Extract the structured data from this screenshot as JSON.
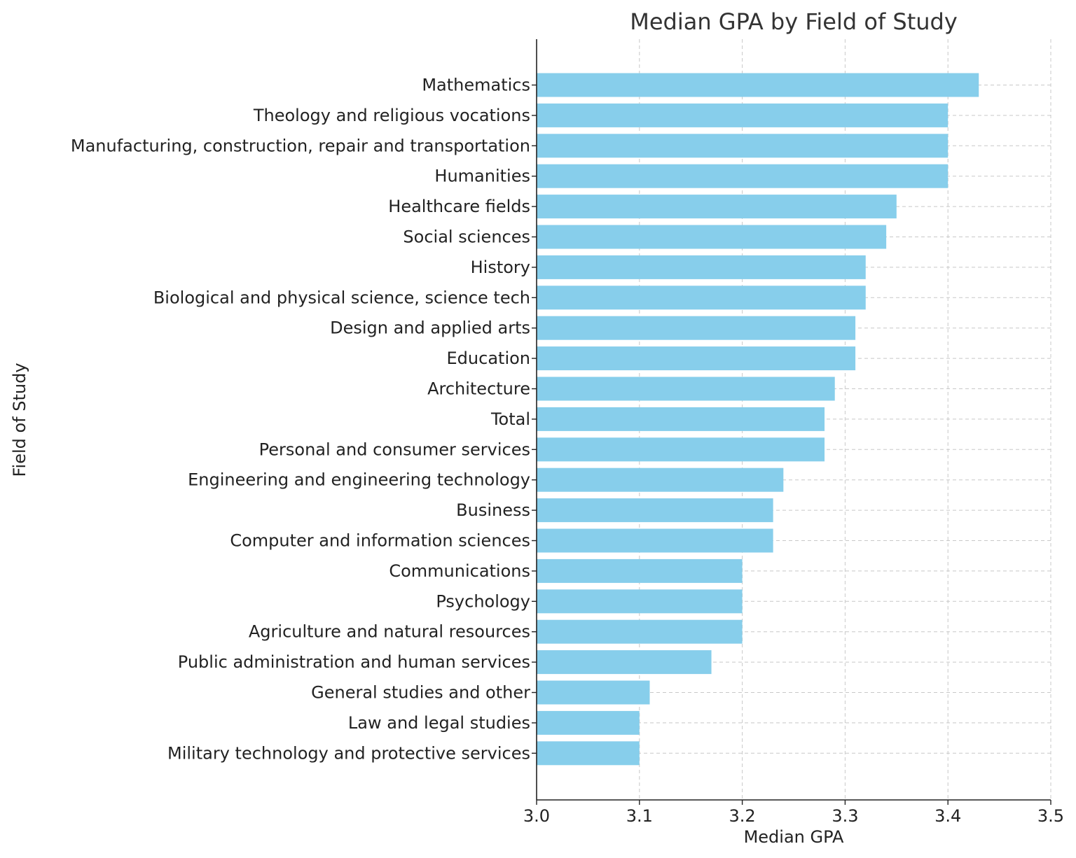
{
  "chart_data": {
    "type": "bar",
    "orientation": "horizontal",
    "title": "Median GPA by Field of Study",
    "xlabel": "Median GPA",
    "ylabel": "Field of Study",
    "xlim": [
      3.0,
      3.5
    ],
    "xticks": [
      "3.0",
      "3.1",
      "3.2",
      "3.3",
      "3.4",
      "3.5"
    ],
    "grid": true,
    "bar_color": "#87ceeb",
    "categories": [
      "Mathematics",
      "Theology and religious vocations",
      "Manufacturing, construction, repair and transportation",
      "Humanities",
      "Healthcare fields",
      "Social sciences",
      "History",
      "Biological and physical science, science tech",
      "Design and applied arts",
      "Education",
      "Architecture",
      "Total",
      "Personal and consumer services",
      "Engineering and engineering technology",
      "Business",
      "Computer and information sciences",
      "Communications",
      "Psychology",
      "Agriculture and natural resources",
      "Public administration and human services",
      "General studies and other",
      "Law and legal studies",
      "Military technology and protective services"
    ],
    "values": [
      3.43,
      3.4,
      3.4,
      3.4,
      3.35,
      3.34,
      3.32,
      3.32,
      3.31,
      3.31,
      3.29,
      3.28,
      3.28,
      3.24,
      3.23,
      3.23,
      3.2,
      3.2,
      3.2,
      3.17,
      3.11,
      3.1,
      3.1
    ]
  }
}
